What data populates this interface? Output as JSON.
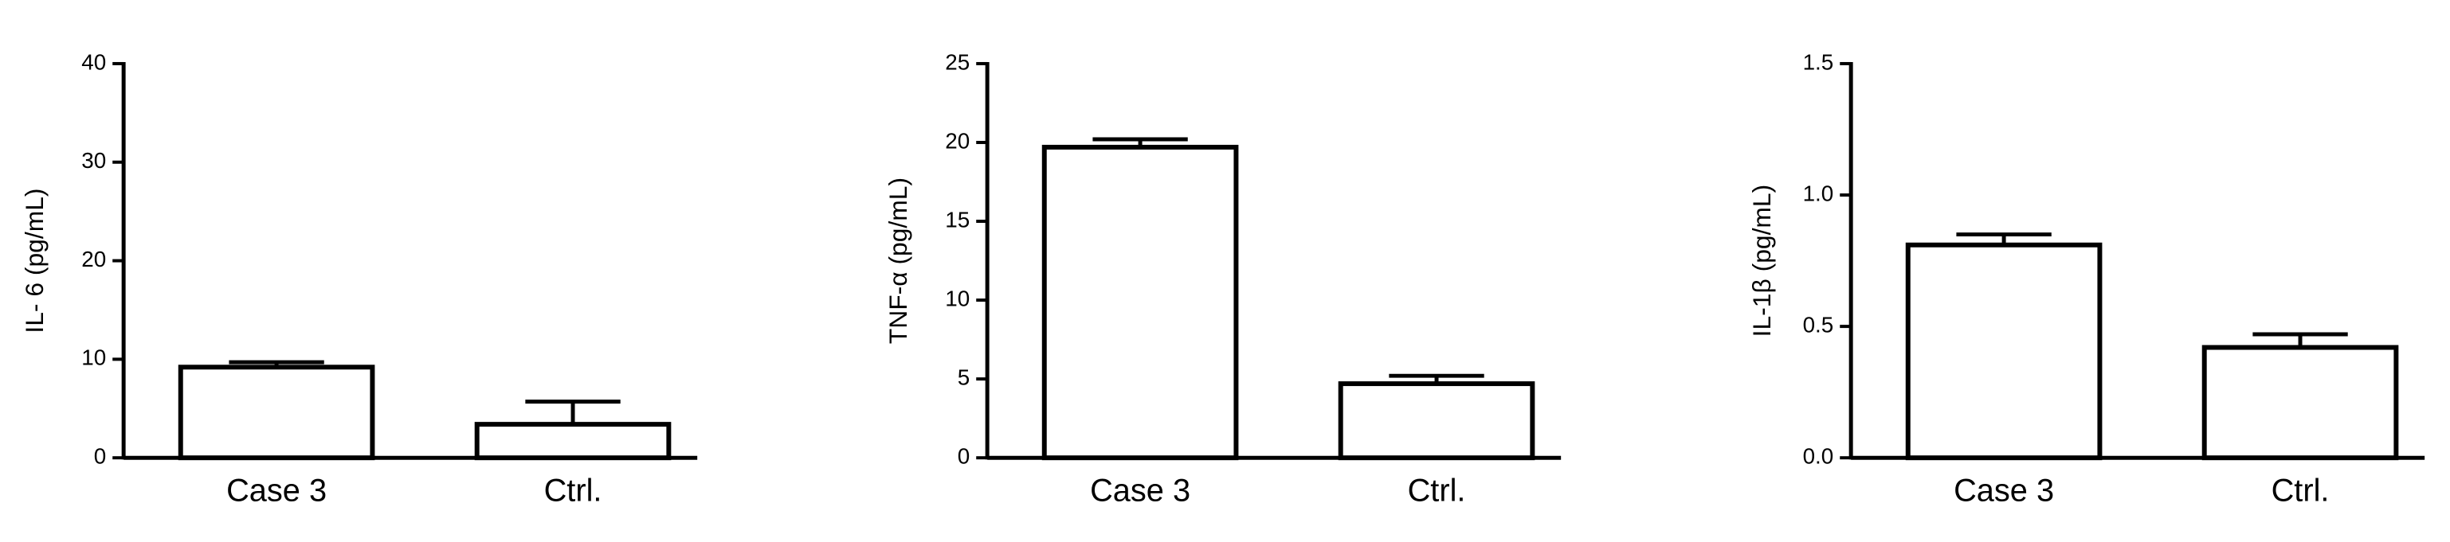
{
  "chart_data": [
    {
      "type": "bar",
      "ylabel": "IL- 6 (pg/mL)",
      "categories": [
        "Case 3",
        "Ctrl."
      ],
      "values": [
        9.2,
        3.4
      ],
      "errors": [
        0.5,
        2.3
      ],
      "color": "#ffffff",
      "ylim": [
        0,
        40
      ],
      "yticks": [
        0,
        10,
        20,
        30,
        40
      ]
    },
    {
      "type": "bar",
      "ylabel": "TNF-α (pg/mL)",
      "categories": [
        "Case 3",
        "Ctrl."
      ],
      "values": [
        19.7,
        4.7
      ],
      "errors": [
        0.5,
        0.5
      ],
      "color": "#ffffff",
      "ylim": [
        0,
        25
      ],
      "yticks": [
        0,
        5,
        10,
        15,
        20,
        25
      ]
    },
    {
      "type": "bar",
      "ylabel": "IL-1β (pg/mL)",
      "categories": [
        "Case 3",
        "Ctrl."
      ],
      "values": [
        0.81,
        0.42
      ],
      "errors": [
        0.04,
        0.05
      ],
      "color": "#ffffff",
      "ylim": [
        0,
        1.5
      ],
      "yticks": [
        {
          "value": 0,
          "label": "0.0"
        },
        0.5,
        {
          "value": 1,
          "label": "1.0"
        },
        1.5
      ]
    }
  ]
}
